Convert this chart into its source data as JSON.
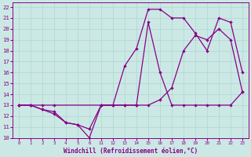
{
  "xlabel": "Windchill (Refroidissement éolien,°C)",
  "bg_color": "#cce8e4",
  "line_color": "#880088",
  "grid_color": "#aad8d4",
  "ylim": [
    10,
    22.4
  ],
  "yticks": [
    10,
    11,
    12,
    13,
    14,
    15,
    16,
    17,
    18,
    19,
    20,
    21,
    22
  ],
  "x_display": [
    "0",
    "1",
    "2",
    "3",
    "4",
    "5",
    "6",
    "11",
    "12",
    "13",
    "14",
    "15",
    "16",
    "17",
    "18",
    "19",
    "20",
    "21",
    "22",
    "23"
  ],
  "line1_x": [
    0,
    1,
    2,
    3,
    4,
    5,
    6,
    11,
    12,
    13,
    14,
    15,
    16,
    17,
    18,
    19,
    20,
    21,
    22,
    23
  ],
  "line1_y": [
    13,
    13,
    12.6,
    12.2,
    11.4,
    11.2,
    10.0,
    13,
    13,
    13,
    13,
    20.6,
    16.0,
    13,
    13,
    13,
    13,
    13,
    13,
    14.2
  ],
  "line2_x": [
    0,
    1,
    2,
    3,
    4,
    5,
    6,
    11,
    12,
    13,
    14,
    15,
    16,
    17,
    18,
    19,
    20,
    21,
    22,
    23
  ],
  "line2_y": [
    13,
    13,
    12.6,
    12.4,
    11.4,
    11.2,
    10.8,
    13,
    13,
    16.6,
    18.2,
    21.8,
    21.8,
    21.0,
    21.0,
    19.6,
    18.0,
    21.0,
    20.6,
    16.0
  ],
  "line3_x": [
    0,
    1,
    2,
    3,
    11,
    12,
    13,
    14,
    15,
    16,
    17,
    18,
    19,
    20,
    21,
    22,
    23
  ],
  "line3_y": [
    13,
    13,
    13,
    13,
    13,
    13,
    13,
    13,
    13,
    13.5,
    14.6,
    18.0,
    19.4,
    19.0,
    20.0,
    19.0,
    14.2
  ]
}
